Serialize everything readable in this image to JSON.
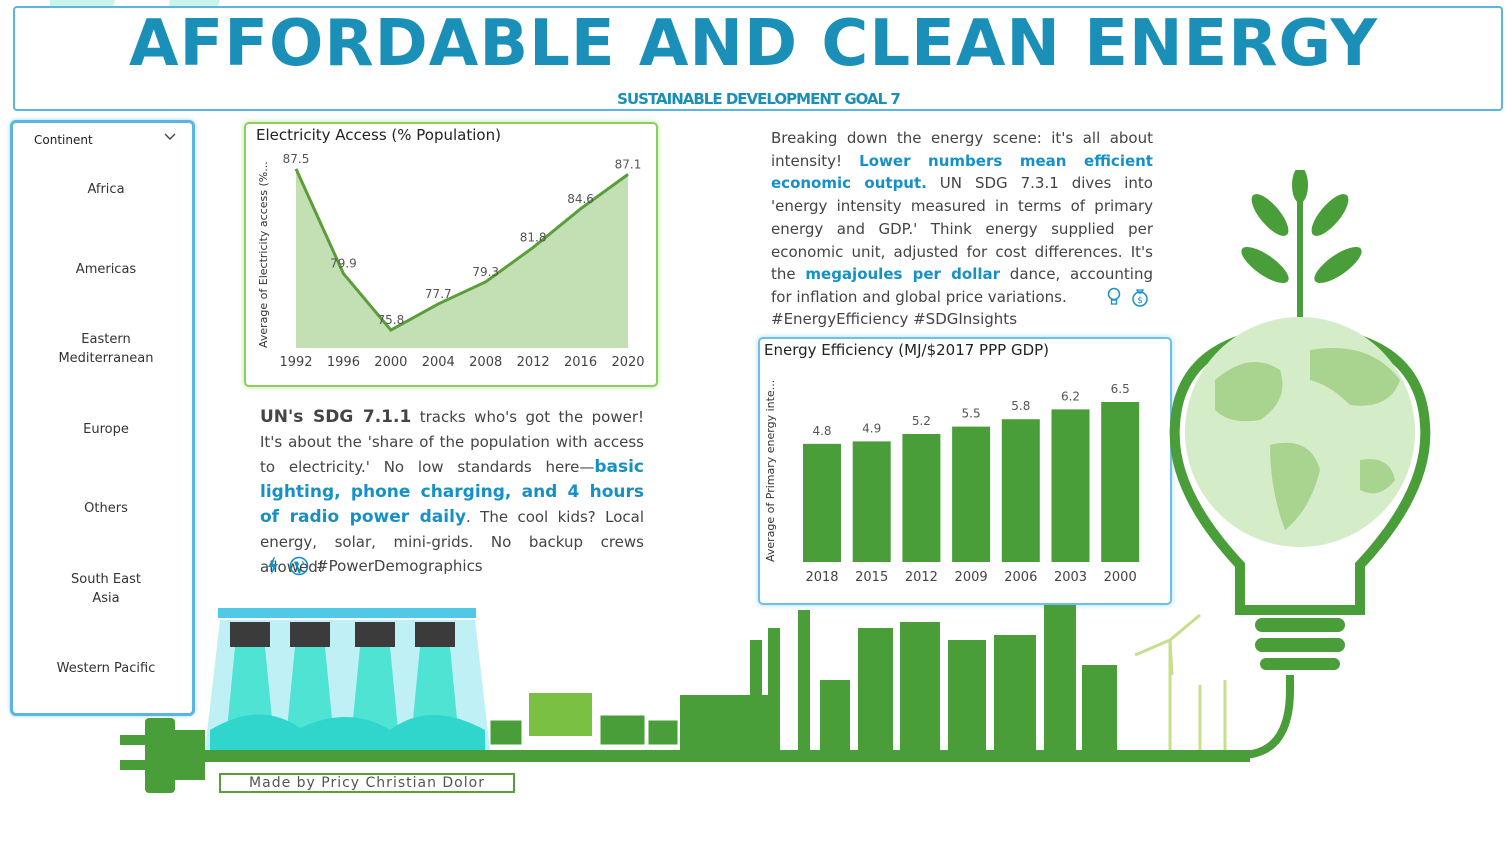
{
  "header": {
    "title": "AFFORDABLE AND CLEAN ENERGY",
    "subtitle": "SUSTAINABLE DEVELOPMENT GOAL 7"
  },
  "slicer": {
    "label": "Continent",
    "items": [
      "Africa",
      "Americas",
      "Eastern Mediterranean",
      "Europe",
      "Others",
      "South East Asia",
      "Western Pacific"
    ]
  },
  "colors": {
    "accent": "#1a8fb8",
    "green": "#5b9e39",
    "light_green": "#c3dfb4",
    "bar_green": "#4a9e3a"
  },
  "access_text": {
    "part1": "UN's SDG 7.1.1",
    "part2": " tracks who's got the power! It's about the 'share of the population with access to electricity.' No low standards here—",
    "part3": "basic lighting, phone charging, and 4 hours of radio power daily",
    "part4": ". The cool kids? Local energy, solar, mini-grids. No backup crews allowed!",
    "hashtag": "#PowerDemographics"
  },
  "efficiency_text": {
    "part1": "Breaking down the energy scene: it's all about intensity! ",
    "part2": "Lower numbers mean efficient economic output.",
    "part3": " UN SDG 7.3.1 dives into 'energy intensity measured in terms of primary energy and GDP.' Think energy supplied per economic unit, adjusted for cost differences. It's the ",
    "part4": "megajoules per dollar",
    "part5": " dance, accounting for inflation and global price variations.",
    "hashtag": "#EnergyEfficiency #SDGInsights"
  },
  "credit": "Made by Pricy Christian Dolor",
  "chart_data": [
    {
      "type": "area",
      "title": "Electricity Access (% Population)",
      "ylabel": "Average of Electricity access (%...",
      "xlabel": "",
      "categories": [
        "1992",
        "1996",
        "2000",
        "2004",
        "2008",
        "2012",
        "2016",
        "2020"
      ],
      "x": [
        1992,
        1996,
        2000,
        2004,
        2008,
        2012,
        2016,
        2020
      ],
      "points": [
        {
          "x": 1992,
          "y": 87.5
        },
        {
          "x": 1996,
          "y": 79.9
        },
        {
          "x": 2000,
          "y": 75.8
        },
        {
          "x": 2004,
          "y": 77.7
        },
        {
          "x": 2008,
          "y": 79.3
        },
        {
          "x": 2012,
          "y": 81.8
        },
        {
          "x": 2016,
          "y": 84.6
        },
        {
          "x": 2020,
          "y": 87.1
        }
      ],
      "labels": [
        "87.5",
        "79.9",
        "75.8",
        "77.7",
        "79.3",
        "81.8",
        "84.6",
        "87.1"
      ],
      "ylim": [
        74.5,
        88
      ]
    },
    {
      "type": "bar",
      "title": "Energy Efficiency (MJ/$2017 PPP GDP)",
      "ylabel": "Average of Primary energy inte...",
      "xlabel": "",
      "categories": [
        "2018",
        "2015",
        "2012",
        "2009",
        "2006",
        "2003",
        "2000"
      ],
      "values": [
        4.8,
        4.9,
        5.2,
        5.5,
        5.8,
        6.2,
        6.5
      ],
      "labels": [
        "4.8",
        "4.9",
        "5.2",
        "5.5",
        "5.8",
        "6.2",
        "6.5"
      ],
      "ylim": [
        0,
        6.5
      ]
    }
  ]
}
